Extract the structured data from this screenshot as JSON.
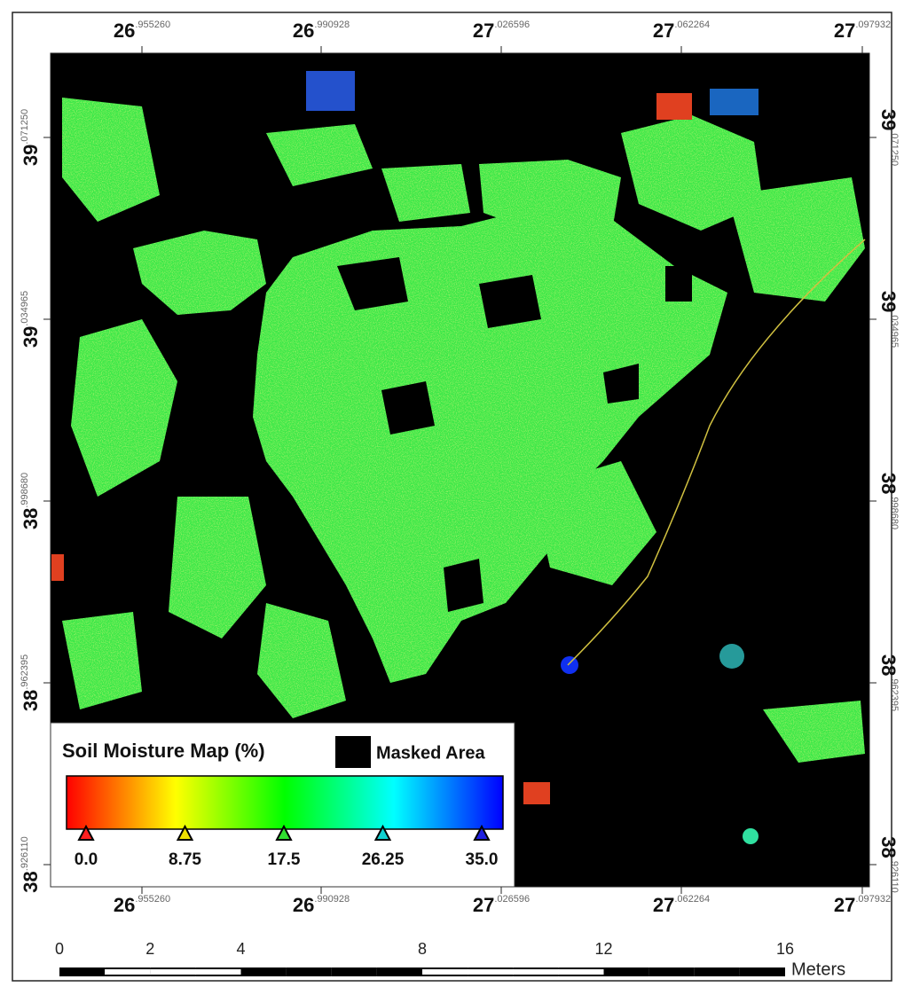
{
  "map": {
    "top_labels": [
      {
        "degree": "26",
        "fraction": ".955260"
      },
      {
        "degree": "26",
        "fraction": ".990928"
      },
      {
        "degree": "27",
        "fraction": ".026596"
      },
      {
        "degree": "27",
        "fraction": ".062264"
      },
      {
        "degree": "27",
        "fraction": ".097932"
      }
    ],
    "bottom_labels": [
      {
        "degree": "26",
        "fraction": ".955260"
      },
      {
        "degree": "26",
        "fraction": ".990928"
      },
      {
        "degree": "27",
        "fraction": ".026596"
      },
      {
        "degree": "27",
        "fraction": ".062264"
      },
      {
        "degree": "27",
        "fraction": ".097932"
      }
    ],
    "left_labels": [
      {
        "degree": "39",
        "fraction": ".071250"
      },
      {
        "degree": "39",
        "fraction": ".034965"
      },
      {
        "degree": "38",
        "fraction": ".998680"
      },
      {
        "degree": "38",
        "fraction": ".962395"
      },
      {
        "degree": "38",
        "fraction": ".926110"
      }
    ],
    "right_labels": [
      {
        "degree": "39",
        "fraction": ".071250"
      },
      {
        "degree": "39",
        "fraction": ".034965"
      },
      {
        "degree": "38",
        "fraction": ".998680"
      },
      {
        "degree": "38",
        "fraction": ".962395"
      },
      {
        "degree": "38",
        "fraction": ".926110"
      }
    ],
    "legend": {
      "title": "Soil Moisture Map (%)",
      "masked_label": "Masked Area",
      "range": [
        0,
        35
      ],
      "ticks": [
        {
          "value": 0,
          "label": "0.0",
          "color": "#ff2020"
        },
        {
          "value": 8.75,
          "color": "#f0e000"
        },
        {
          "value": 17.5,
          "color": "#30e030"
        },
        {
          "value": 26.25,
          "color": "#10d0d0"
        },
        {
          "value": 35,
          "label": "35.0",
          "color": "#2020e0"
        }
      ],
      "colors": [
        "#ff0000",
        "#ffff00",
        "#00ff00",
        "#00ffff",
        "#0000ff"
      ]
    },
    "scale_bar": {
      "ticks": [
        0,
        2,
        4,
        8,
        12,
        16
      ],
      "range": [
        0,
        16
      ],
      "unit": "Meters"
    }
  }
}
